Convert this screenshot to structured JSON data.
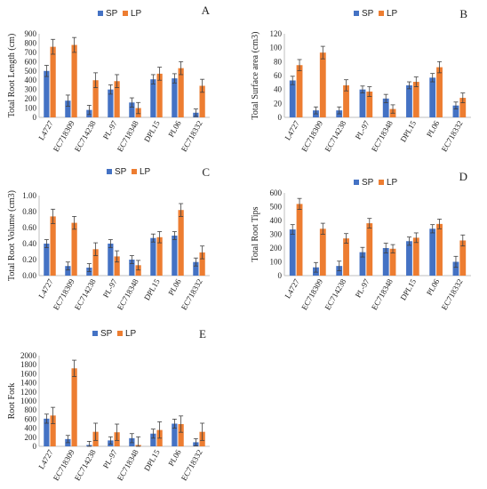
{
  "colors": {
    "sp": "#4472C4",
    "lp": "#ED7D31",
    "axis": "#bfbfbf",
    "grid": "#d9d9d9",
    "error": "#404040",
    "text": "#222222"
  },
  "chart_data": [
    {
      "panel": "A",
      "type": "bar",
      "ylabel": "Total Root Length (cm)",
      "categories": [
        "L4727",
        "EC718309",
        "EC714238",
        "PL-97",
        "EC718348",
        "DPL15",
        "PL06",
        "EC718332"
      ],
      "ylim": [
        0,
        900
      ],
      "ticks": [
        0,
        100,
        200,
        300,
        400,
        500,
        600,
        700,
        800,
        900
      ],
      "tick_labels": [
        "0",
        "100",
        "200",
        "300",
        "400",
        "500",
        "600",
        "700",
        "800",
        "900"
      ],
      "series": [
        {
          "name": "SP",
          "values": [
            500,
            180,
            80,
            300,
            160,
            410,
            420,
            50
          ],
          "errors": [
            60,
            60,
            50,
            50,
            50,
            50,
            50,
            40
          ]
        },
        {
          "name": "LP",
          "values": [
            760,
            780,
            400,
            390,
            100,
            470,
            530,
            340
          ],
          "errors": [
            80,
            80,
            80,
            70,
            60,
            70,
            70,
            70
          ]
        }
      ]
    },
    {
      "panel": "B",
      "type": "bar",
      "ylabel": "Total Surface area (cm3)",
      "categories": [
        "L4727",
        "EC718309",
        "EC714238",
        "PL-97",
        "EC718348",
        "DPL15",
        "PL06",
        "EC718332"
      ],
      "ylim": [
        0,
        120
      ],
      "ticks": [
        0,
        20,
        40,
        60,
        80,
        100,
        120
      ],
      "tick_labels": [
        "0",
        "20",
        "40",
        "60",
        "80",
        "100",
        "120"
      ],
      "series": [
        {
          "name": "SP",
          "values": [
            53,
            10,
            10,
            40,
            27,
            46,
            57,
            17
          ],
          "errors": [
            6,
            5,
            5,
            5,
            6,
            5,
            6,
            5
          ]
        },
        {
          "name": "LP",
          "values": [
            75,
            93,
            46,
            37,
            12,
            51,
            72,
            28
          ],
          "errors": [
            8,
            9,
            8,
            7,
            6,
            7,
            8,
            7
          ]
        }
      ]
    },
    {
      "panel": "C",
      "type": "bar",
      "ylabel": "Total Root Volume (cm3)",
      "categories": [
        "L4727",
        "EC718309",
        "EC714238",
        "PL-97",
        "EC718348",
        "DPL15",
        "PL06",
        "EC718332"
      ],
      "ylim": [
        0,
        1.0
      ],
      "ticks": [
        0,
        0.2,
        0.4,
        0.6,
        0.8,
        1.0
      ],
      "tick_labels": [
        "0.00",
        "0.20",
        "0.40",
        "0.60",
        "0.80",
        "1.00"
      ],
      "series": [
        {
          "name": "SP",
          "values": [
            0.4,
            0.12,
            0.1,
            0.4,
            0.2,
            0.47,
            0.5,
            0.17
          ],
          "errors": [
            0.05,
            0.05,
            0.05,
            0.05,
            0.05,
            0.05,
            0.05,
            0.05
          ]
        },
        {
          "name": "LP",
          "values": [
            0.74,
            0.66,
            0.33,
            0.24,
            0.13,
            0.48,
            0.82,
            0.29
          ],
          "errors": [
            0.09,
            0.08,
            0.08,
            0.07,
            0.06,
            0.07,
            0.08,
            0.08
          ]
        }
      ]
    },
    {
      "panel": "D",
      "type": "bar",
      "ylabel": "Total Root Tips",
      "categories": [
        "L4727",
        "EC718309",
        "EC714238",
        "PL-97",
        "EC718348",
        "DPL15",
        "PL06",
        "EC718332"
      ],
      "ylim": [
        0,
        600
      ],
      "ticks": [
        0,
        100,
        200,
        300,
        400,
        500,
        600
      ],
      "tick_labels": [
        "0",
        "100",
        "200",
        "300",
        "400",
        "500",
        "600"
      ],
      "series": [
        {
          "name": "SP",
          "values": [
            335,
            60,
            70,
            170,
            200,
            250,
            340,
            100
          ],
          "errors": [
            35,
            35,
            35,
            35,
            35,
            30,
            30,
            40
          ]
        },
        {
          "name": "LP",
          "values": [
            520,
            340,
            270,
            380,
            195,
            275,
            375,
            255
          ],
          "errors": [
            40,
            40,
            35,
            35,
            30,
            35,
            35,
            40
          ]
        }
      ]
    },
    {
      "panel": "E",
      "type": "bar",
      "ylabel": "Root Fork",
      "categories": [
        "L4727",
        "EC718309",
        "EC714238",
        "PL-97",
        "EC718348",
        "DPL15",
        "PL06",
        "EC718332"
      ],
      "ylim": [
        0,
        2000
      ],
      "ticks": [
        0,
        200,
        400,
        600,
        800,
        1000,
        1200,
        1400,
        1600,
        1800,
        2000
      ],
      "tick_labels": [
        "0",
        "200",
        "400",
        "600",
        "800",
        "1000",
        "1200",
        "1400",
        "1600",
        "1800",
        "2000"
      ],
      "series": [
        {
          "name": "SP",
          "values": [
            610,
            160,
            30,
            130,
            180,
            280,
            500,
            90
          ],
          "errors": [
            100,
            80,
            80,
            80,
            100,
            100,
            100,
            80
          ]
        },
        {
          "name": "LP",
          "values": [
            680,
            1720,
            320,
            310,
            30,
            360,
            490,
            320
          ],
          "errors": [
            180,
            180,
            190,
            180,
            180,
            180,
            180,
            190
          ]
        }
      ]
    }
  ]
}
